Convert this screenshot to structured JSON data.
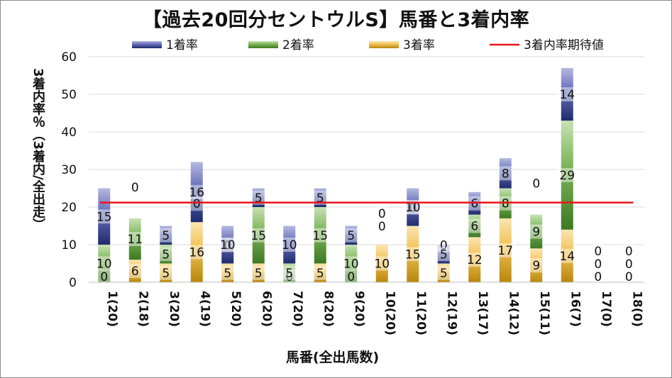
{
  "title": "【過去20回分セントウルS】馬番と3着内率",
  "chart_data": {
    "type": "bar",
    "stacked": true,
    "categories": [
      "1(20)",
      "2(18)",
      "3(20)",
      "4(19)",
      "5(20)",
      "6(20)",
      "7(20)",
      "8(20)",
      "9(20)",
      "10(20)",
      "11(20)",
      "12(19)",
      "13(17)",
      "14(12)",
      "15(11)",
      "16(7)",
      "17(0)",
      "18(0)"
    ],
    "series": [
      {
        "name": "3着率",
        "color": "#e8b84a",
        "values": [
          0,
          6,
          5,
          16,
          5,
          5,
          0,
          5,
          0,
          10,
          15,
          5,
          12,
          17,
          9,
          14,
          0,
          0
        ]
      },
      {
        "name": "2着率",
        "color": "#6aa84f",
        "values": [
          10,
          11,
          5,
          0,
          0,
          15,
          5,
          15,
          10,
          0,
          0,
          0,
          6,
          8,
          9,
          29,
          0,
          0
        ]
      },
      {
        "name": "1着率",
        "color": "#5b63b0",
        "values": [
          15,
          0,
          5,
          16,
          10,
          5,
          10,
          5,
          5,
          0,
          10,
          5,
          6,
          8,
          0,
          14,
          0,
          0
        ]
      }
    ],
    "reference_line": {
      "name": "3着内率期待値",
      "color": "#e8141b",
      "value": 21.2
    },
    "legend_order": [
      "1着率",
      "2着率",
      "3着率",
      "3着内率期待値"
    ],
    "legend_position": "top",
    "ylabel": "3着内率％（3着内/全出走）",
    "xlabel": "馬番(全出馬数)",
    "ylim": [
      0,
      60
    ],
    "yticks": [
      0,
      10,
      20,
      30,
      40,
      50,
      60
    ],
    "grid": true
  }
}
